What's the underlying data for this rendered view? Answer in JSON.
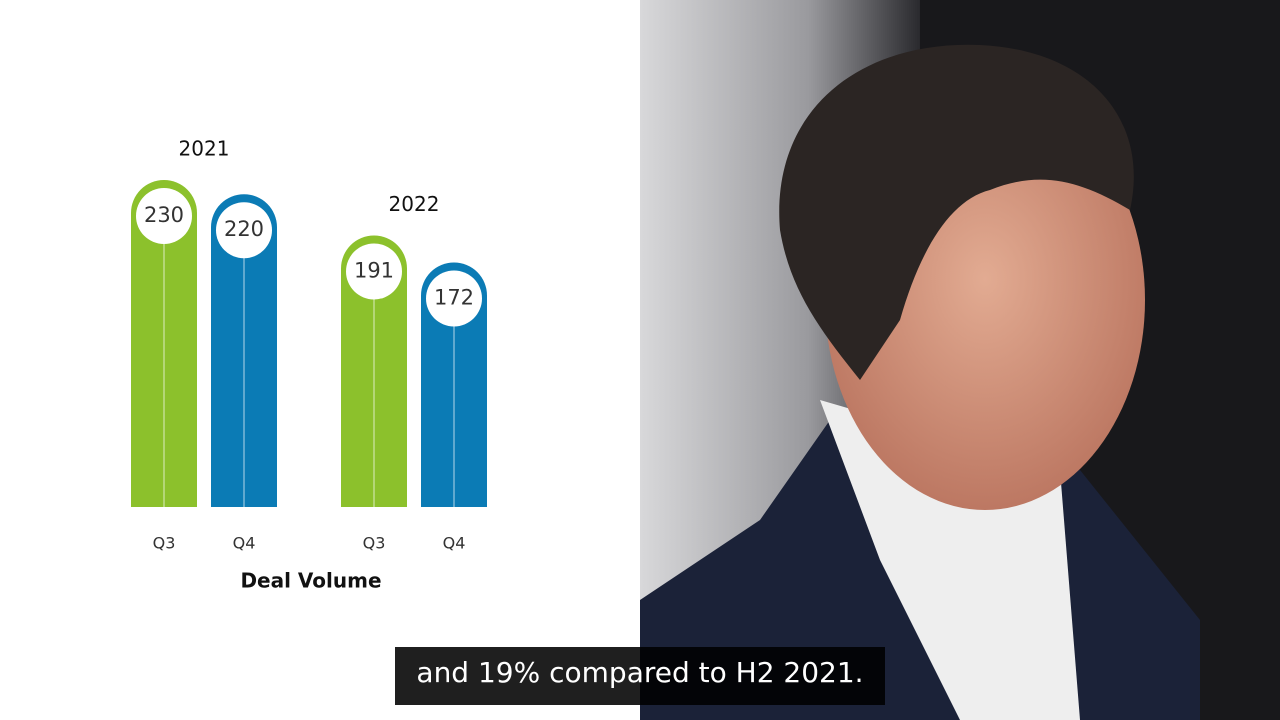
{
  "chart_data": {
    "type": "bar",
    "categories": [
      "2021",
      "2022"
    ],
    "series": [
      {
        "name": "Q3",
        "color": "#8cc12c",
        "values": [
          230,
          191
        ]
      },
      {
        "name": "Q4",
        "color": "#0b7bb5",
        "values": [
          220,
          172
        ]
      }
    ],
    "x_label": "Deal Volume"
  },
  "caption": "and 19% compared to H2 2021."
}
